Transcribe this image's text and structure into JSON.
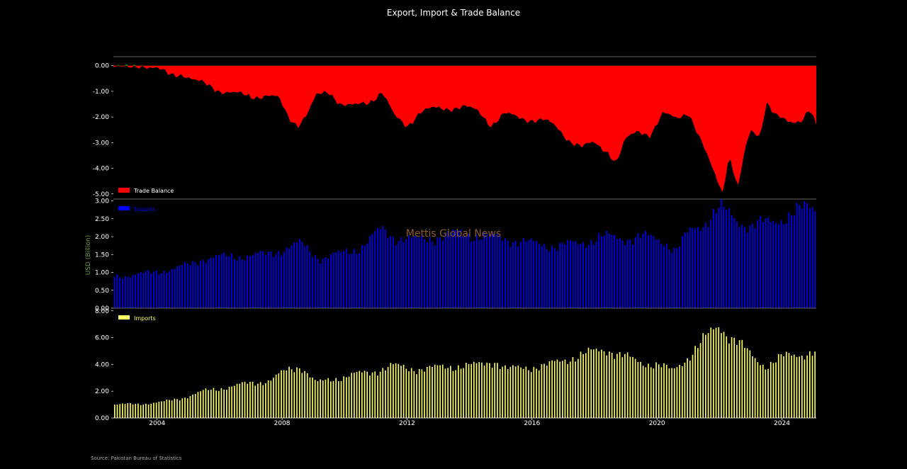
{
  "chart_data": {
    "title": "Export, Import & Trade Balance",
    "source": "Source: Pakistan Bureau of Statistics",
    "watermark": "Mettis Global News",
    "ylabel": "USD (Billion)",
    "x_ticks": [
      "2004",
      "2008",
      "2012",
      "2016",
      "2020",
      "2024"
    ],
    "x_range": [
      2002.6,
      2025.1
    ],
    "colors": {
      "balance_negative": "#ff0000",
      "balance_positive": "#008000",
      "exports": "#0000ff",
      "imports": "#ffff66",
      "exports_legend": "#0000ff",
      "imports_legend": "#ffff66"
    },
    "panels": [
      {
        "type": "area",
        "series_name": "Trade Balance",
        "ylim": [
          -5.2,
          0.35
        ],
        "yticks": [
          "0.00",
          "-1.00",
          "-2.00",
          "-3.00",
          "-4.00",
          "-5.00"
        ],
        "yvals": [
          0,
          -1,
          -2,
          -3,
          -4,
          -5
        ],
        "legend_position": "lower-left",
        "anchors": [
          [
            2002.6,
            -0.05
          ],
          [
            2003.0,
            -0.1
          ],
          [
            2003.5,
            0.05
          ],
          [
            2004.0,
            -0.15
          ],
          [
            2004.4,
            -0.35
          ],
          [
            2004.8,
            -0.3
          ],
          [
            2005.2,
            -0.6
          ],
          [
            2005.6,
            -0.75
          ],
          [
            2006.0,
            -0.95
          ],
          [
            2006.5,
            -1.1
          ],
          [
            2007.0,
            -1.2
          ],
          [
            2007.5,
            -1.15
          ],
          [
            2007.9,
            -1.3
          ],
          [
            2008.2,
            -2.0
          ],
          [
            2008.5,
            -2.3
          ],
          [
            2008.8,
            -1.9
          ],
          [
            2009.1,
            -1.2
          ],
          [
            2009.5,
            -1.0
          ],
          [
            2009.9,
            -1.5
          ],
          [
            2010.3,
            -1.6
          ],
          [
            2010.8,
            -1.4
          ],
          [
            2011.2,
            -1.0
          ],
          [
            2011.6,
            -2.0
          ],
          [
            2012.0,
            -2.35
          ],
          [
            2012.4,
            -1.8
          ],
          [
            2012.8,
            -1.7
          ],
          [
            2013.3,
            -1.65
          ],
          [
            2013.8,
            -1.6
          ],
          [
            2014.3,
            -1.8
          ],
          [
            2014.7,
            -2.3
          ],
          [
            2015.1,
            -1.9
          ],
          [
            2015.5,
            -2.0
          ],
          [
            2016.0,
            -2.1
          ],
          [
            2016.4,
            -2.15
          ],
          [
            2016.8,
            -2.4
          ],
          [
            2017.2,
            -2.9
          ],
          [
            2017.6,
            -3.2
          ],
          [
            2018.0,
            -3.0
          ],
          [
            2018.4,
            -3.3
          ],
          [
            2018.7,
            -3.8
          ],
          [
            2019.0,
            -2.9
          ],
          [
            2019.4,
            -2.5
          ],
          [
            2019.8,
            -2.7
          ],
          [
            2020.2,
            -1.9
          ],
          [
            2020.6,
            -2.0
          ],
          [
            2021.0,
            -1.8
          ],
          [
            2021.3,
            -2.7
          ],
          [
            2021.6,
            -3.5
          ],
          [
            2021.9,
            -4.3
          ],
          [
            2022.1,
            -4.9
          ],
          [
            2022.3,
            -3.5
          ],
          [
            2022.6,
            -4.8
          ],
          [
            2022.8,
            -3.4
          ],
          [
            2023.0,
            -2.5
          ],
          [
            2023.3,
            -2.7
          ],
          [
            2023.5,
            -1.4
          ],
          [
            2023.8,
            -2.0
          ],
          [
            2024.2,
            -2.2
          ],
          [
            2024.6,
            -2.1
          ],
          [
            2024.9,
            -1.7
          ],
          [
            2025.1,
            -2.4
          ]
        ]
      },
      {
        "type": "bar",
        "series_name": "Exports",
        "ylim": [
          0,
          3.05
        ],
        "yticks": [
          "0.00",
          "0.50",
          "1.00",
          "1.50",
          "2.00",
          "2.50",
          "3.00"
        ],
        "yvals": [
          0,
          0.5,
          1,
          1.5,
          2,
          2.5,
          3
        ],
        "legend_position": "upper-left",
        "anchors": [
          [
            2002.6,
            0.9
          ],
          [
            2003.5,
            0.95
          ],
          [
            2004.5,
            1.1
          ],
          [
            2005.0,
            1.2
          ],
          [
            2005.5,
            1.4
          ],
          [
            2006.5,
            1.45
          ],
          [
            2007.5,
            1.5
          ],
          [
            2008.2,
            1.7
          ],
          [
            2008.6,
            1.8
          ],
          [
            2009.2,
            1.4
          ],
          [
            2009.8,
            1.5
          ],
          [
            2010.5,
            1.7
          ],
          [
            2011.2,
            2.2
          ],
          [
            2011.6,
            2.0
          ],
          [
            2012.2,
            1.9
          ],
          [
            2013.0,
            2.0
          ],
          [
            2013.8,
            2.1
          ],
          [
            2014.5,
            2.0
          ],
          [
            2015.2,
            1.95
          ],
          [
            2016.0,
            1.8
          ],
          [
            2016.8,
            1.75
          ],
          [
            2017.5,
            1.8
          ],
          [
            2018.2,
            2.0
          ],
          [
            2018.8,
            1.95
          ],
          [
            2019.5,
            2.0
          ],
          [
            2020.2,
            1.9
          ],
          [
            2020.6,
            1.6
          ],
          [
            2021.0,
            2.1
          ],
          [
            2021.5,
            2.4
          ],
          [
            2022.0,
            2.8
          ],
          [
            2022.5,
            2.5
          ],
          [
            2023.0,
            2.3
          ],
          [
            2023.6,
            2.4
          ],
          [
            2024.2,
            2.6
          ],
          [
            2024.8,
            2.8
          ],
          [
            2025.1,
            2.85
          ]
        ]
      },
      {
        "type": "bar",
        "series_name": "Imports",
        "ylim": [
          0,
          8.2
        ],
        "yticks": [
          "0.00",
          "2.00",
          "4.00",
          "6.00",
          "8.00"
        ],
        "yvals": [
          0,
          2,
          4,
          6,
          8
        ],
        "legend_position": "upper-left",
        "anchors": [
          [
            2002.6,
            1.0
          ],
          [
            2003.5,
            1.05
          ],
          [
            2004.2,
            1.2
          ],
          [
            2004.8,
            1.5
          ],
          [
            2005.5,
            2.0
          ],
          [
            2006.2,
            2.3
          ],
          [
            2007.0,
            2.6
          ],
          [
            2007.6,
            2.8
          ],
          [
            2008.2,
            3.6
          ],
          [
            2008.6,
            3.9
          ],
          [
            2009.1,
            2.6
          ],
          [
            2009.6,
            2.9
          ],
          [
            2010.2,
            3.2
          ],
          [
            2010.8,
            3.4
          ],
          [
            2011.5,
            3.9
          ],
          [
            2012.0,
            3.7
          ],
          [
            2012.8,
            3.7
          ],
          [
            2013.5,
            3.9
          ],
          [
            2014.2,
            3.9
          ],
          [
            2014.8,
            4.3
          ],
          [
            2015.2,
            3.6
          ],
          [
            2015.8,
            3.8
          ],
          [
            2016.5,
            3.9
          ],
          [
            2017.2,
            4.5
          ],
          [
            2017.8,
            4.8
          ],
          [
            2018.4,
            5.2
          ],
          [
            2018.8,
            4.7
          ],
          [
            2019.4,
            4.2
          ],
          [
            2020.0,
            4.0
          ],
          [
            2020.5,
            3.5
          ],
          [
            2021.0,
            4.6
          ],
          [
            2021.5,
            5.8
          ],
          [
            2022.0,
            7.0
          ],
          [
            2022.3,
            6.2
          ],
          [
            2022.6,
            5.6
          ],
          [
            2023.0,
            4.7
          ],
          [
            2023.5,
            3.9
          ],
          [
            2024.0,
            4.5
          ],
          [
            2024.5,
            4.8
          ],
          [
            2025.1,
            4.9
          ]
        ]
      }
    ]
  }
}
